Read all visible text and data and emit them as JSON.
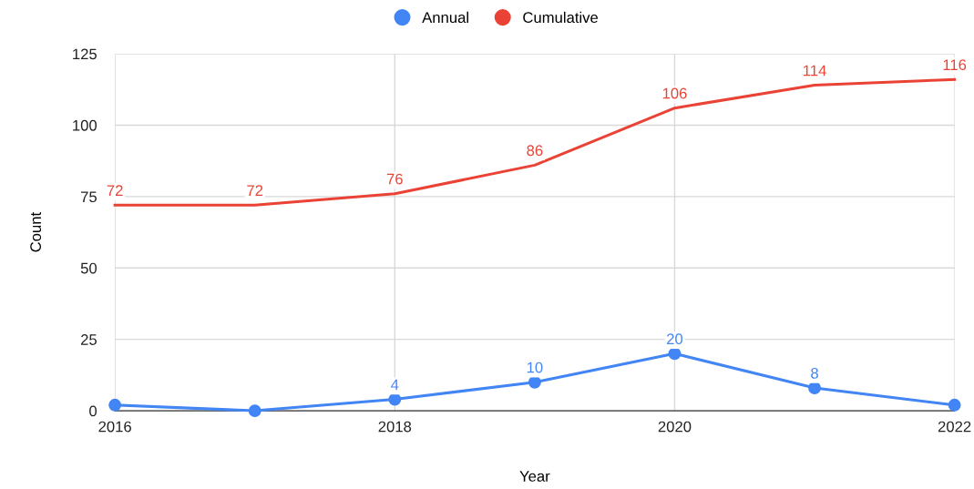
{
  "chart_data": {
    "type": "line",
    "xlabel": "Year",
    "ylabel": "Count",
    "x": [
      2016,
      2017,
      2018,
      2019,
      2020,
      2021,
      2022
    ],
    "series": [
      {
        "name": "Annual",
        "color": "#4285f4",
        "marker": "circle",
        "values": [
          2,
          0,
          4,
          10,
          20,
          8,
          2
        ],
        "value_labels": [
          null,
          null,
          "4",
          "10",
          "20",
          "8",
          null
        ]
      },
      {
        "name": "Cumulative",
        "color": "#ea4335",
        "values": [
          72,
          72,
          76,
          86,
          106,
          114,
          116
        ],
        "value_labels": [
          "72",
          "72",
          "76",
          "86",
          "106",
          "114",
          "116"
        ]
      }
    ],
    "xlim": [
      2016,
      2022
    ],
    "xticks": [
      2016,
      2018,
      2020,
      2022
    ],
    "ylim": [
      0,
      125
    ],
    "yticks": [
      0,
      25,
      50,
      75,
      100,
      125
    ],
    "grid": true,
    "legend": "top"
  }
}
